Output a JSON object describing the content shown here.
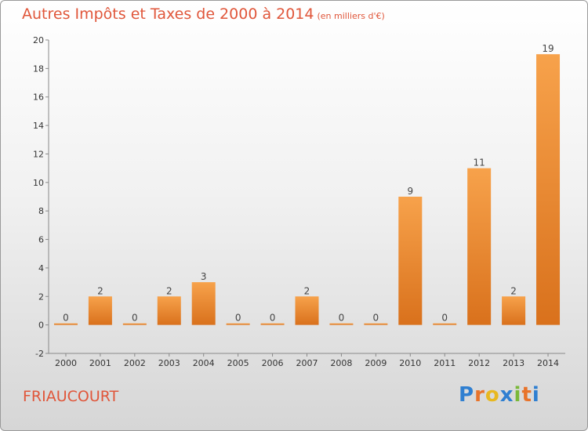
{
  "header": {
    "title": "Autres Impôts et Taxes de 2000 à 2014",
    "unit": "(en milliers d'€)"
  },
  "footer": {
    "commune": "FRIAUCOURT",
    "logo_letters": [
      "P",
      "r",
      "o",
      "x",
      "i",
      "t",
      "i"
    ],
    "logo_colors": [
      "#2f7fd1",
      "#e8732a",
      "#e8b820",
      "#2f7fd1",
      "#7ab83a",
      "#e8732a",
      "#2f7fd1"
    ]
  },
  "colors": {
    "title": "#e0563a",
    "bar_light": "#f7a24b",
    "bar_dark": "#d9711c"
  },
  "chart_data": {
    "type": "bar",
    "categories": [
      "2000",
      "2001",
      "2002",
      "2003",
      "2004",
      "2005",
      "2006",
      "2007",
      "2008",
      "2009",
      "2010",
      "2011",
      "2012",
      "2013",
      "2014"
    ],
    "values": [
      0,
      2,
      0,
      2,
      3,
      0,
      0,
      2,
      0,
      0,
      9,
      0,
      11,
      2,
      19
    ],
    "value_labels": [
      "0",
      "2",
      "0",
      "2",
      "3",
      "0",
      "0",
      "2",
      "0",
      "0",
      "9",
      "0",
      "11",
      "2",
      "19"
    ],
    "yticks": [
      "-2",
      "0",
      "2",
      "4",
      "6",
      "8",
      "10",
      "12",
      "14",
      "16",
      "18",
      "20"
    ],
    "ylim": [
      -2,
      20
    ],
    "title": "Autres Impôts et Taxes de 2000 à 2014",
    "xlabel": "",
    "ylabel": "",
    "grid": false
  }
}
